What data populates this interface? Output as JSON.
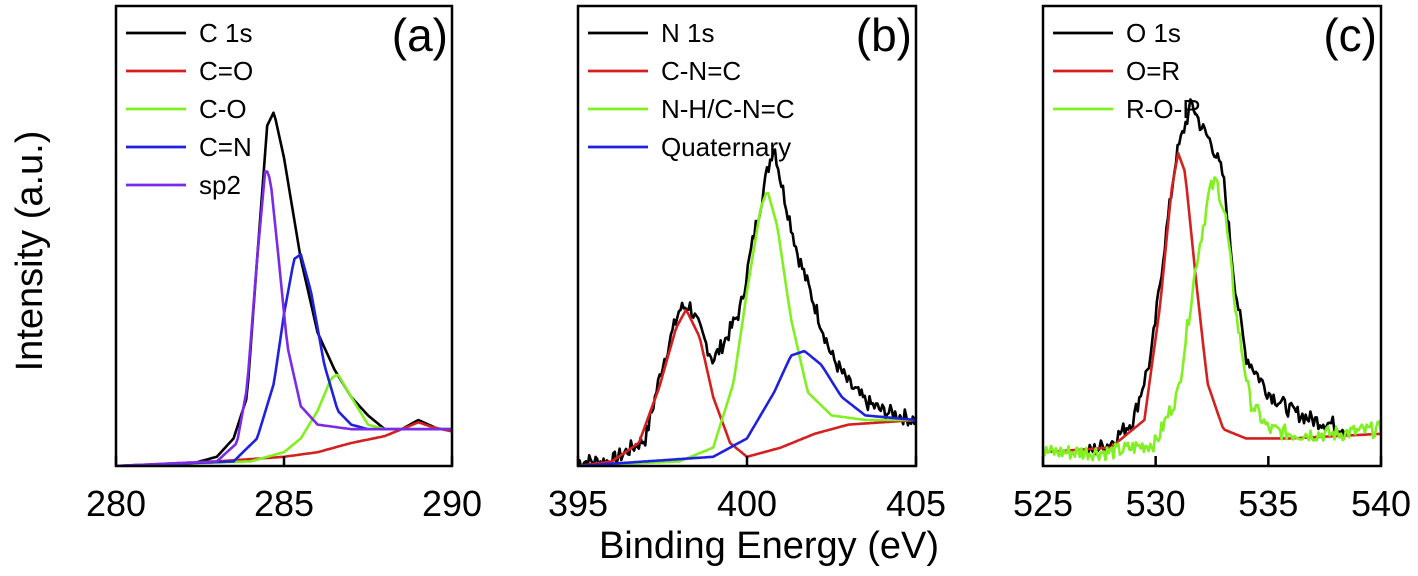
{
  "figure": {
    "ylabel": "Intensity (a.u.)",
    "xlabel": "Binding Energy (eV)",
    "colors": {
      "black": "#000000",
      "red": "#d42020",
      "green": "#80f020",
      "blue": "#2020e0",
      "violet": "#7a2be8"
    }
  },
  "chart_data": [
    {
      "type": "line",
      "panel_label": "(a)",
      "xlabel": "",
      "ylabel": "",
      "xlim": [
        280,
        290
      ],
      "ylim": [
        0,
        1.0
      ],
      "xticks": [
        280,
        285,
        290
      ],
      "legend_position": "top-left",
      "series": [
        {
          "name": "C 1s",
          "color": "#000000",
          "noisy": false,
          "points": [
            [
              280,
              0.0
            ],
            [
              282,
              0.0
            ],
            [
              283,
              0.02
            ],
            [
              283.5,
              0.06
            ],
            [
              283.9,
              0.15
            ],
            [
              284.2,
              0.45
            ],
            [
              284.5,
              0.74
            ],
            [
              284.7,
              0.77
            ],
            [
              285.0,
              0.67
            ],
            [
              285.5,
              0.45
            ],
            [
              286.0,
              0.29
            ],
            [
              286.5,
              0.21
            ],
            [
              287.0,
              0.15
            ],
            [
              287.5,
              0.11
            ],
            [
              288.0,
              0.08
            ],
            [
              288.5,
              0.08
            ],
            [
              289.0,
              0.1
            ],
            [
              289.3,
              0.09
            ],
            [
              289.6,
              0.08
            ],
            [
              290,
              0.08
            ]
          ]
        },
        {
          "name": "C=O",
          "color": "#d42020",
          "noisy": false,
          "points": [
            [
              280,
              0.0
            ],
            [
              283,
              0.01
            ],
            [
              284,
              0.015
            ],
            [
              285,
              0.02
            ],
            [
              286,
              0.03
            ],
            [
              287,
              0.05
            ],
            [
              288,
              0.065
            ],
            [
              288.5,
              0.08
            ],
            [
              289.0,
              0.095
            ],
            [
              289.4,
              0.085
            ],
            [
              290,
              0.075
            ]
          ]
        },
        {
          "name": "C-O",
          "color": "#80f020",
          "noisy": false,
          "points": [
            [
              280,
              0.0
            ],
            [
              284,
              0.01
            ],
            [
              285,
              0.03
            ],
            [
              285.5,
              0.06
            ],
            [
              286.0,
              0.12
            ],
            [
              286.4,
              0.19
            ],
            [
              286.6,
              0.2
            ],
            [
              287.0,
              0.15
            ],
            [
              287.5,
              0.09
            ],
            [
              288.0,
              0.08
            ],
            [
              290,
              0.08
            ]
          ]
        },
        {
          "name": "C=N",
          "color": "#2020e0",
          "noisy": false,
          "points": [
            [
              280,
              0.0
            ],
            [
              283.5,
              0.01
            ],
            [
              284.2,
              0.06
            ],
            [
              284.7,
              0.18
            ],
            [
              285.0,
              0.33
            ],
            [
              285.3,
              0.45
            ],
            [
              285.5,
              0.46
            ],
            [
              285.8,
              0.38
            ],
            [
              286.2,
              0.22
            ],
            [
              286.6,
              0.12
            ],
            [
              287.0,
              0.09
            ],
            [
              287.5,
              0.08
            ],
            [
              290,
              0.08
            ]
          ]
        },
        {
          "name": "sp2",
          "color": "#7a2be8",
          "noisy": false,
          "points": [
            [
              280,
              0.0
            ],
            [
              283.0,
              0.01
            ],
            [
              283.6,
              0.05
            ],
            [
              283.9,
              0.17
            ],
            [
              284.2,
              0.45
            ],
            [
              284.45,
              0.65
            ],
            [
              284.6,
              0.62
            ],
            [
              284.8,
              0.48
            ],
            [
              285.1,
              0.26
            ],
            [
              285.5,
              0.13
            ],
            [
              286.0,
              0.09
            ],
            [
              287.0,
              0.08
            ],
            [
              290,
              0.08
            ]
          ]
        }
      ]
    },
    {
      "type": "line",
      "panel_label": "(b)",
      "xlabel": "",
      "ylabel": "",
      "xlim": [
        395,
        405
      ],
      "ylim": [
        0,
        1.0
      ],
      "xticks": [
        395,
        400,
        405
      ],
      "legend_position": "top-left",
      "series": [
        {
          "name": "N 1s",
          "color": "#000000",
          "noisy": true,
          "points": [
            [
              395,
              0.01
            ],
            [
              396,
              0.01
            ],
            [
              397,
              0.06
            ],
            [
              397.5,
              0.22
            ],
            [
              398.0,
              0.34
            ],
            [
              398.3,
              0.35
            ],
            [
              398.7,
              0.28
            ],
            [
              399.0,
              0.23
            ],
            [
              399.4,
              0.28
            ],
            [
              399.8,
              0.34
            ],
            [
              400.2,
              0.5
            ],
            [
              400.6,
              0.64
            ],
            [
              400.8,
              0.7
            ],
            [
              401.0,
              0.62
            ],
            [
              401.5,
              0.46
            ],
            [
              402.0,
              0.35
            ],
            [
              402.5,
              0.24
            ],
            [
              403.0,
              0.18
            ],
            [
              403.5,
              0.14
            ],
            [
              404.0,
              0.12
            ],
            [
              404.5,
              0.11
            ],
            [
              405,
              0.1
            ]
          ]
        },
        {
          "name": "C-N=C",
          "color": "#d42020",
          "noisy": false,
          "points": [
            [
              395,
              0.0
            ],
            [
              396,
              0.01
            ],
            [
              396.8,
              0.05
            ],
            [
              397.4,
              0.17
            ],
            [
              397.9,
              0.3
            ],
            [
              398.2,
              0.34
            ],
            [
              398.6,
              0.28
            ],
            [
              399.0,
              0.15
            ],
            [
              399.5,
              0.05
            ],
            [
              400.0,
              0.02
            ],
            [
              401.0,
              0.04
            ],
            [
              402.0,
              0.07
            ],
            [
              403.0,
              0.09
            ],
            [
              405,
              0.1
            ]
          ]
        },
        {
          "name": "N-H/C-N=C",
          "color": "#80f020",
          "noisy": false,
          "points": [
            [
              395,
              0.0
            ],
            [
              398,
              0.01
            ],
            [
              399,
              0.04
            ],
            [
              399.6,
              0.18
            ],
            [
              400.0,
              0.38
            ],
            [
              400.4,
              0.56
            ],
            [
              400.6,
              0.6
            ],
            [
              400.9,
              0.52
            ],
            [
              401.3,
              0.32
            ],
            [
              401.8,
              0.16
            ],
            [
              402.5,
              0.11
            ],
            [
              403.5,
              0.1
            ],
            [
              405,
              0.1
            ]
          ]
        },
        {
          "name": "Quaternary",
          "color": "#2020e0",
          "noisy": false,
          "points": [
            [
              395,
              0.0
            ],
            [
              397,
              0.01
            ],
            [
              399,
              0.02
            ],
            [
              400,
              0.06
            ],
            [
              400.8,
              0.16
            ],
            [
              401.3,
              0.24
            ],
            [
              401.7,
              0.25
            ],
            [
              402.2,
              0.22
            ],
            [
              402.8,
              0.15
            ],
            [
              403.5,
              0.11
            ],
            [
              405,
              0.1
            ]
          ]
        }
      ]
    },
    {
      "type": "line",
      "panel_label": "(c)",
      "xlabel": "",
      "ylabel": "",
      "xlim": [
        525,
        540
      ],
      "ylim": [
        0,
        1.0
      ],
      "xticks": [
        525,
        530,
        535,
        540
      ],
      "legend_position": "top-left",
      "series": [
        {
          "name": "O 1s",
          "color": "#000000",
          "noisy": true,
          "points": [
            [
              527,
              0.03
            ],
            [
              528,
              0.05
            ],
            [
              529,
              0.1
            ],
            [
              529.8,
              0.24
            ],
            [
              530.4,
              0.48
            ],
            [
              530.9,
              0.67
            ],
            [
              531.3,
              0.74
            ],
            [
              531.6,
              0.79
            ],
            [
              532.0,
              0.74
            ],
            [
              532.5,
              0.7
            ],
            [
              533.0,
              0.63
            ],
            [
              533.5,
              0.4
            ],
            [
              534.0,
              0.24
            ],
            [
              535,
              0.16
            ],
            [
              536,
              0.12
            ],
            [
              537,
              0.1
            ],
            [
              538,
              0.09
            ],
            [
              538.5,
              0.08
            ]
          ]
        },
        {
          "name": "O=R",
          "color": "#d42020",
          "noisy": false,
          "points": [
            [
              525,
              0.03
            ],
            [
              528,
              0.04
            ],
            [
              529.5,
              0.1
            ],
            [
              530.2,
              0.35
            ],
            [
              530.7,
              0.6
            ],
            [
              531.0,
              0.68
            ],
            [
              531.3,
              0.64
            ],
            [
              531.8,
              0.4
            ],
            [
              532.3,
              0.18
            ],
            [
              533.0,
              0.08
            ],
            [
              534,
              0.06
            ],
            [
              536,
              0.06
            ],
            [
              540,
              0.07
            ]
          ]
        },
        {
          "name": "R-O-R",
          "color": "#80f020",
          "noisy": true,
          "points": [
            [
              525,
              0.03
            ],
            [
              528,
              0.03
            ],
            [
              530,
              0.05
            ],
            [
              531.0,
              0.16
            ],
            [
              531.8,
              0.44
            ],
            [
              532.4,
              0.6
            ],
            [
              532.7,
              0.62
            ],
            [
              533.1,
              0.54
            ],
            [
              533.6,
              0.32
            ],
            [
              534.2,
              0.14
            ],
            [
              535,
              0.08
            ],
            [
              536,
              0.07
            ],
            [
              538,
              0.07
            ],
            [
              540,
              0.08
            ]
          ]
        }
      ]
    }
  ]
}
